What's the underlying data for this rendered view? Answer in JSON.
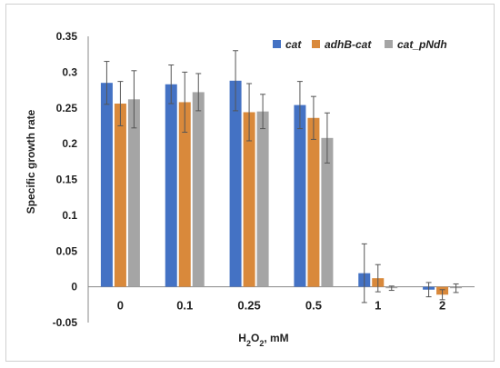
{
  "chart_data": {
    "type": "bar",
    "title": "",
    "xlabel": "H2O2, mM",
    "ylabel": "Specific growth rate",
    "ylim": [
      -0.05,
      0.35
    ],
    "yticks": [
      "-0.05",
      "0",
      "0.05",
      "0.1",
      "0.15",
      "0.2",
      "0.25",
      "0.3",
      "0.35"
    ],
    "categories": [
      "0",
      "0.1",
      "0.25",
      "0.5",
      "1",
      "2"
    ],
    "grid": false,
    "legend_position": "top-right",
    "error_bars": true,
    "series": [
      {
        "name": "cat",
        "color": "#4472c4",
        "values": [
          0.285,
          0.283,
          0.288,
          0.254,
          0.019,
          -0.004
        ],
        "errors": [
          0.03,
          0.027,
          0.042,
          0.033,
          0.041,
          0.01
        ]
      },
      {
        "name": "adhB-cat",
        "color": "#d9893b",
        "values": [
          0.256,
          0.258,
          0.244,
          0.236,
          0.012,
          -0.011
        ],
        "errors": [
          0.031,
          0.042,
          0.04,
          0.03,
          0.019,
          0.007
        ]
      },
      {
        "name": "cat_pNdh",
        "color": "#a5a5a5",
        "values": [
          0.262,
          0.272,
          0.245,
          0.208,
          -0.002,
          -0.002
        ],
        "errors": [
          0.04,
          0.026,
          0.024,
          0.035,
          0.003,
          0.006
        ]
      }
    ]
  }
}
